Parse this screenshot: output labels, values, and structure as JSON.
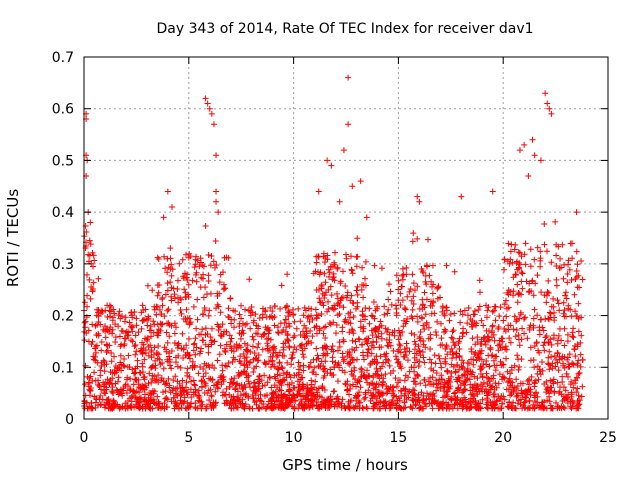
{
  "chart_data": {
    "type": "scatter",
    "title": "Day 343 of 2014, Rate Of TEC Index for receiver dav1",
    "xlabel": "GPS time / hours",
    "ylabel": "ROTI / TECUs",
    "xlim": [
      0,
      25
    ],
    "ylim": [
      0,
      0.7
    ],
    "xticks": [
      "0",
      "5",
      "10",
      "15",
      "20",
      "25"
    ],
    "yticks": [
      "0",
      "0.1",
      "0.2",
      "0.3",
      "0.4",
      "0.5",
      "0.6",
      "0.7"
    ],
    "xtick_values": [
      0,
      5,
      10,
      15,
      20,
      25
    ],
    "ytick_values": [
      0,
      0.1,
      0.2,
      0.3,
      0.4,
      0.5,
      0.6,
      0.7
    ],
    "grid": true,
    "marker": "+",
    "color": "#ff0000",
    "x_range_of_data": [
      0,
      23.8
    ],
    "series": [
      {
        "x": [
          0.1,
          0.1,
          0.1,
          0.15,
          0.1,
          0.2,
          0.3,
          3.8,
          4.0,
          4.2,
          5.8,
          5.9,
          6.0,
          6.1,
          6.2,
          6.3,
          6.3,
          6.3,
          6.4,
          11.2,
          11.6,
          11.8,
          12.2,
          12.4,
          12.6,
          12.6,
          12.8,
          13.2,
          15.9,
          16.0,
          18.0,
          19.5,
          20.8,
          21.0,
          21.2,
          21.4,
          21.5,
          21.8,
          22.0,
          22.1,
          22.2,
          22.3,
          23.5
        ],
        "y": [
          0.59,
          0.58,
          0.51,
          0.5,
          0.47,
          0.4,
          0.38,
          0.39,
          0.44,
          0.41,
          0.62,
          0.61,
          0.6,
          0.59,
          0.57,
          0.51,
          0.44,
          0.42,
          0.4,
          0.44,
          0.5,
          0.49,
          0.42,
          0.52,
          0.66,
          0.57,
          0.45,
          0.46,
          0.43,
          0.42,
          0.43,
          0.44,
          0.52,
          0.53,
          0.47,
          0.54,
          0.51,
          0.5,
          0.63,
          0.61,
          0.6,
          0.59,
          0.4
        ]
      }
    ]
  }
}
